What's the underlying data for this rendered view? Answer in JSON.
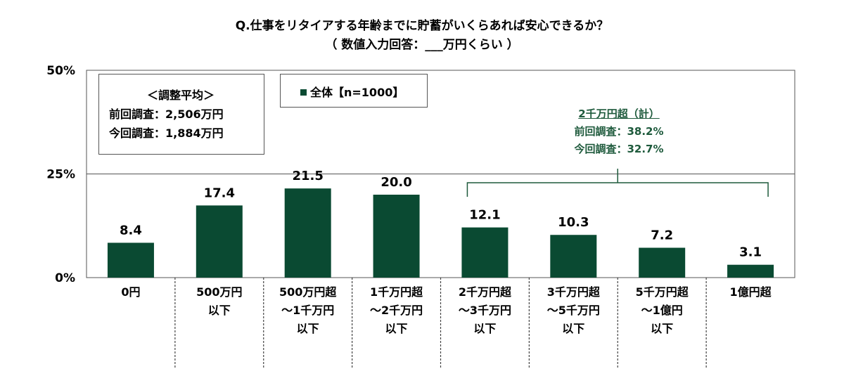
{
  "title": {
    "line1": "Q.仕事をリタイアする年齢までに貯蓄がいくらあれば安心できるか？",
    "line2": "（ 数値入力回答：___万円くらい ）"
  },
  "average_box": {
    "heading": "＜調整平均＞",
    "previous": "前回調査：2,506万円",
    "current": "今回調査：1,884万円"
  },
  "legend": {
    "label": "全体【n=1000】"
  },
  "note": {
    "heading": "2千万円超（計）",
    "previous": "前回調査：38.2%",
    "current": "今回調査：32.7%"
  },
  "colors": {
    "bar": "#0a4a32",
    "note": "#1e5a3c"
  },
  "chart_data": {
    "type": "bar",
    "title": "Q.仕事をリタイアする年齢までに貯蓄がいくらあれば安心できるか？",
    "categories": [
      [
        "0円"
      ],
      [
        "500万円",
        "以下"
      ],
      [
        "500万円超",
        "～1千万円",
        "以下"
      ],
      [
        "1千万円超",
        "～2千万円",
        "以下"
      ],
      [
        "2千万円超",
        "～3千万円",
        "以下"
      ],
      [
        "3千万円超",
        "～5千万円",
        "以下"
      ],
      [
        "5千万円超",
        "～1億円",
        "以下"
      ],
      [
        "1億円超"
      ]
    ],
    "series": [
      {
        "name": "全体【n=1000】",
        "values": [
          8.4,
          17.4,
          21.5,
          20.0,
          12.1,
          10.3,
          7.2,
          3.1
        ]
      }
    ],
    "value_labels": [
      "8.4",
      "17.4",
      "21.5",
      "20.0",
      "12.1",
      "10.3",
      "7.2",
      "3.1"
    ],
    "ylim": [
      0,
      50
    ],
    "yticks": [
      "0%",
      "25%",
      "50%"
    ],
    "grid": true,
    "bracket_categories": [
      4,
      7
    ],
    "legend_position": "top-left"
  }
}
